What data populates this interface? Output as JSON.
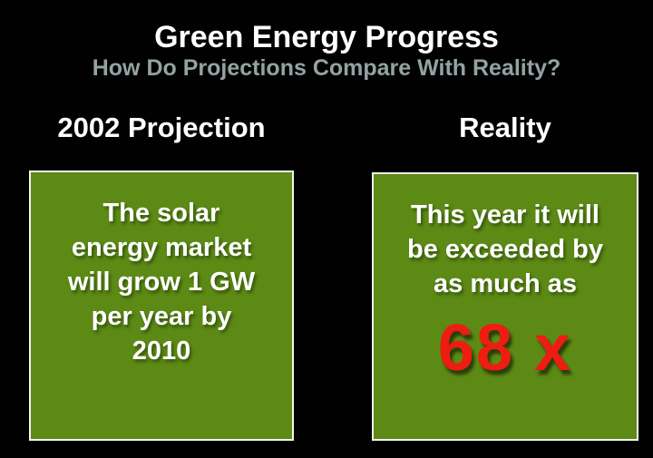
{
  "slide": {
    "title": "Green Energy Progress",
    "subtitle": "How Do Projections Compare With Reality?",
    "columns": [
      {
        "heading": "2002 Projection",
        "lines": [
          "The solar",
          "energy market",
          "will grow 1 GW",
          "per year by",
          "2010"
        ]
      },
      {
        "heading": "Reality",
        "lines": [
          "This year it will",
          "be exceeded by",
          "as much as"
        ],
        "highlight": "68 x"
      }
    ],
    "colors": {
      "background": "#010101",
      "box_green": "#5c8a15",
      "box_border": "#f4f4ec",
      "title_text": "#ffffff",
      "subtitle_text": "#93a3a2",
      "highlight_red": "#ee1c11"
    }
  }
}
